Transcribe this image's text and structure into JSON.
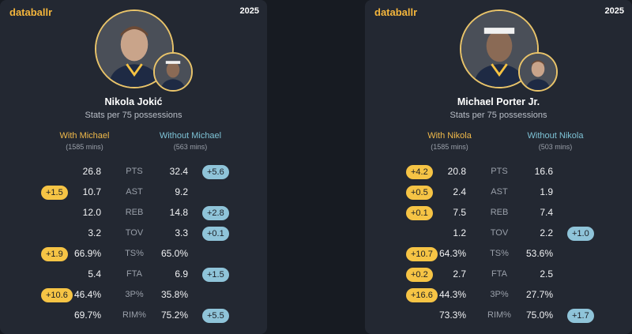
{
  "cards": [
    {
      "brand": "databallr",
      "year": "2025",
      "main_avatar_icon": "player-photo-icon",
      "sub_avatar_icon": "teammate-photo-icon",
      "player": "Nikola Jokić",
      "subtitle": "Stats per 75 possessions",
      "with_label": "With Michael",
      "with_mins": "(1585 mins)",
      "without_label": "Without Michael",
      "without_mins": "(563 mins)",
      "rows": [
        {
          "stat": "PTS",
          "with": "26.8",
          "without": "32.4",
          "diff_with": "",
          "diff_without": "+5.6"
        },
        {
          "stat": "AST",
          "with": "10.7",
          "without": "9.2",
          "diff_with": "+1.5",
          "diff_without": ""
        },
        {
          "stat": "REB",
          "with": "12.0",
          "without": "14.8",
          "diff_with": "",
          "diff_without": "+2.8"
        },
        {
          "stat": "TOV",
          "with": "3.2",
          "without": "3.3",
          "diff_with": "",
          "diff_without": "+0.1"
        },
        {
          "stat": "TS%",
          "with": "66.9%",
          "without": "65.0%",
          "diff_with": "+1.9",
          "diff_without": ""
        },
        {
          "stat": "FTA",
          "with": "5.4",
          "without": "6.9",
          "diff_with": "",
          "diff_without": "+1.5"
        },
        {
          "stat": "3P%",
          "with": "46.4%",
          "without": "35.8%",
          "diff_with": "+10.6",
          "diff_without": ""
        },
        {
          "stat": "RIM%",
          "with": "69.7%",
          "without": "75.2%",
          "diff_with": "",
          "diff_without": "+5.5"
        }
      ]
    },
    {
      "brand": "databallr",
      "year": "2025",
      "main_avatar_icon": "player-photo-icon",
      "sub_avatar_icon": "teammate-photo-icon",
      "player": "Michael Porter Jr.",
      "subtitle": "Stats per 75 possessions",
      "with_label": "With Nikola",
      "with_mins": "(1585 mins)",
      "without_label": "Without Nikola",
      "without_mins": "(503 mins)",
      "rows": [
        {
          "stat": "PTS",
          "with": "20.8",
          "without": "16.6",
          "diff_with": "+4.2",
          "diff_without": ""
        },
        {
          "stat": "AST",
          "with": "2.4",
          "without": "1.9",
          "diff_with": "+0.5",
          "diff_without": ""
        },
        {
          "stat": "REB",
          "with": "7.5",
          "without": "7.4",
          "diff_with": "+0.1",
          "diff_without": ""
        },
        {
          "stat": "TOV",
          "with": "1.2",
          "without": "2.2",
          "diff_with": "",
          "diff_without": "+1.0"
        },
        {
          "stat": "TS%",
          "with": "64.3%",
          "without": "53.6%",
          "diff_with": "+10.7",
          "diff_without": ""
        },
        {
          "stat": "FTA",
          "with": "2.7",
          "without": "2.5",
          "diff_with": "+0.2",
          "diff_without": ""
        },
        {
          "stat": "3P%",
          "with": "44.3%",
          "without": "27.7%",
          "diff_with": "+16.6",
          "diff_without": ""
        },
        {
          "stat": "RIM%",
          "with": "73.3%",
          "without": "75.0%",
          "diff_with": "",
          "diff_without": "+1.7"
        }
      ]
    }
  ],
  "colors": {
    "brand": "#f3b53c",
    "with_accent": "#f6c445",
    "without_accent": "#8fc4d9",
    "card_bg": "#232832"
  }
}
